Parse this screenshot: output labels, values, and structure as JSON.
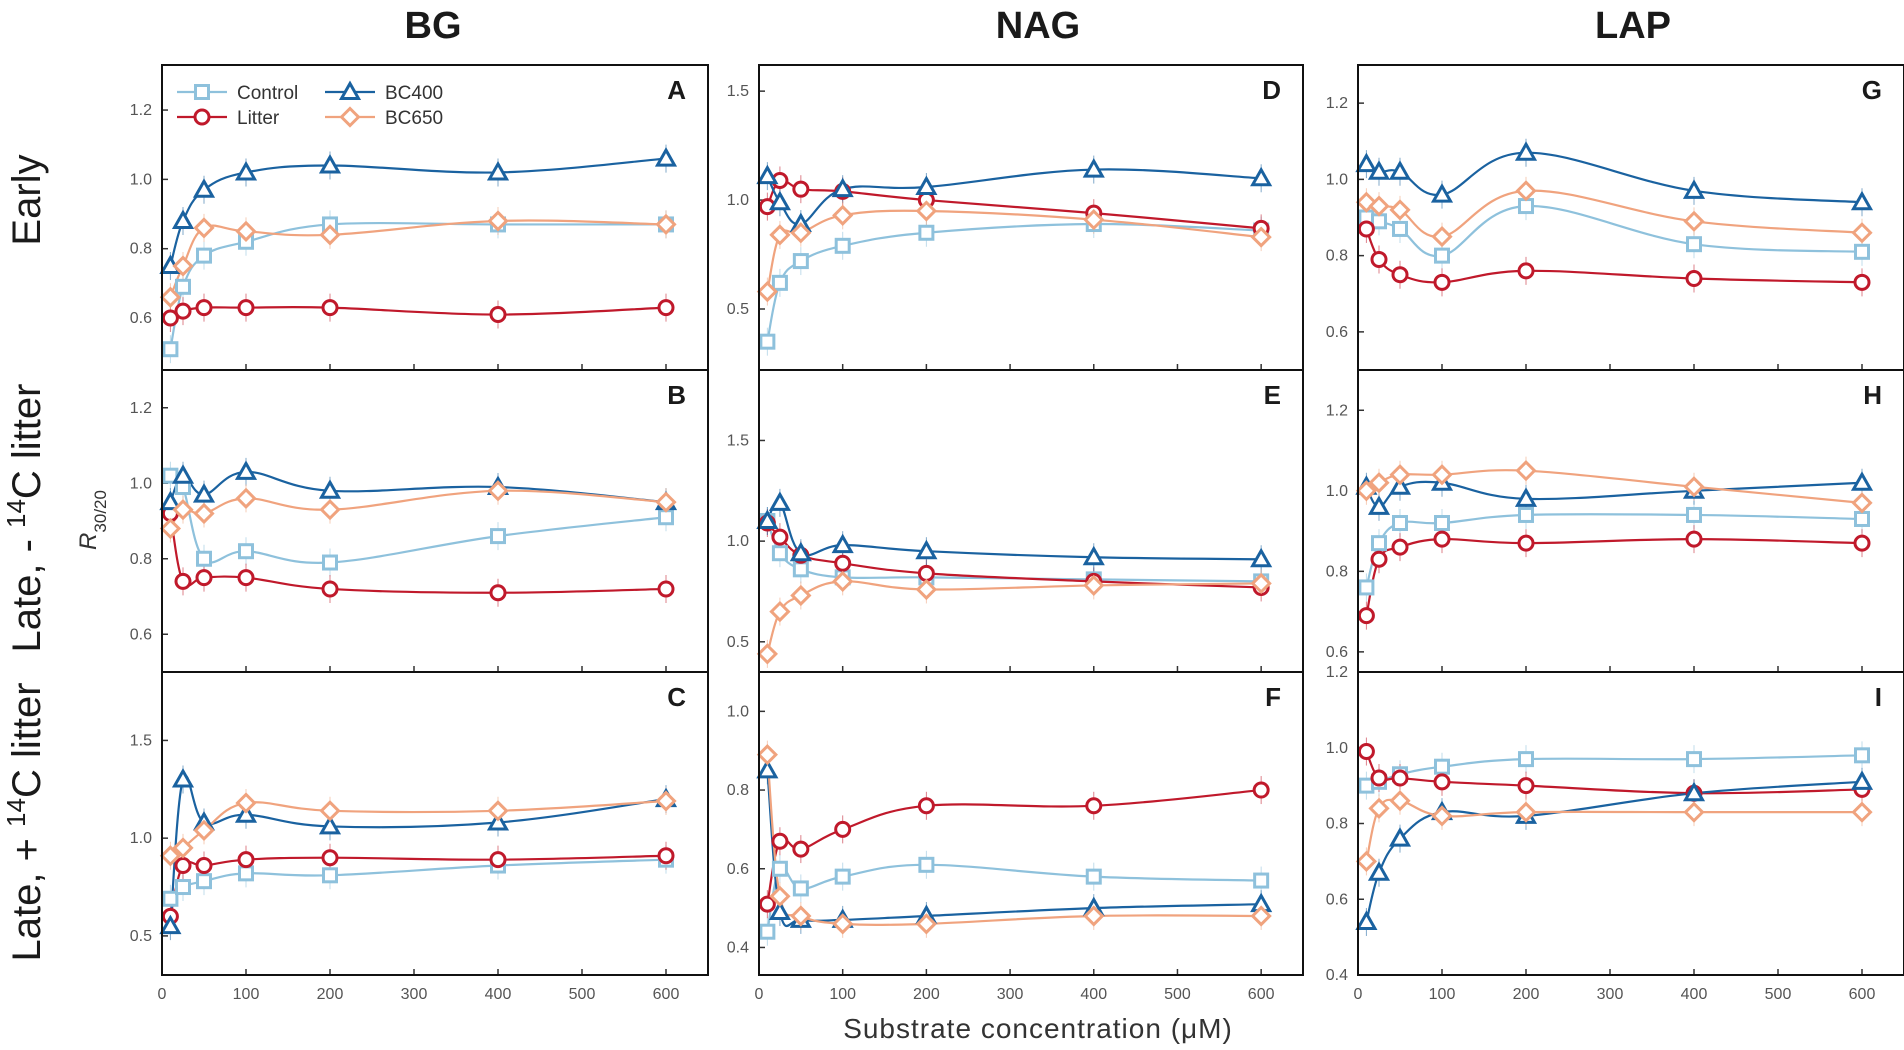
{
  "figure": {
    "columns": [
      "BG",
      "NAG",
      "LAP"
    ],
    "rows": [
      {
        "text": "Early",
        "sup": "",
        "suffix": ""
      },
      {
        "text": "Late, - ",
        "sup": "14",
        "suffix": "C litter"
      },
      {
        "text": "Late, + ",
        "sup": "14",
        "suffix": "C litter"
      }
    ],
    "xlabel": "Substrate concentration (μM)",
    "ylabel_main": "R",
    "ylabel_sub": "30/20",
    "colors": {
      "Control": "#8ec1dc",
      "Litter": "#c0192b",
      "BC400": "#1a62a0",
      "BC650": "#f0a37e"
    }
  },
  "chart_data": [
    {
      "panel": "A",
      "type": "line",
      "column": "BG",
      "row": "Early",
      "x": [
        10,
        25,
        50,
        100,
        200,
        400,
        600
      ],
      "xlim": [
        0,
        650
      ],
      "xticks": [
        0,
        100,
        200,
        300,
        400,
        500,
        600
      ],
      "ylim": [
        0.45,
        1.33
      ],
      "yticks": [
        0.6,
        0.8,
        1.0,
        1.2
      ],
      "legend": [
        "Control",
        "Litter",
        "BC400",
        "BC650"
      ],
      "series": [
        {
          "name": "Control",
          "marker": "square",
          "values": [
            0.51,
            0.69,
            0.78,
            0.82,
            0.87,
            0.87,
            0.87
          ]
        },
        {
          "name": "Litter",
          "marker": "circle",
          "values": [
            0.6,
            0.62,
            0.63,
            0.63,
            0.63,
            0.61,
            0.63
          ]
        },
        {
          "name": "BC400",
          "marker": "triangle",
          "values": [
            0.75,
            0.88,
            0.97,
            1.02,
            1.04,
            1.02,
            1.06
          ]
        },
        {
          "name": "BC650",
          "marker": "diamond",
          "values": [
            0.66,
            0.75,
            0.86,
            0.85,
            0.84,
            0.88,
            0.87
          ]
        }
      ]
    },
    {
      "panel": "B",
      "type": "line",
      "column": "BG",
      "row": "Late, -14C litter",
      "x": [
        10,
        25,
        50,
        100,
        200,
        400,
        600
      ],
      "xlim": [
        0,
        650
      ],
      "xticks": [
        0,
        100,
        200,
        300,
        400,
        500,
        600
      ],
      "ylim": [
        0.5,
        1.3
      ],
      "yticks": [
        0.6,
        0.8,
        1.0,
        1.2
      ],
      "series": [
        {
          "name": "Control",
          "marker": "square",
          "values": [
            1.02,
            0.99,
            0.8,
            0.82,
            0.79,
            0.86,
            0.91
          ]
        },
        {
          "name": "Litter",
          "marker": "circle",
          "values": [
            0.92,
            0.74,
            0.75,
            0.75,
            0.72,
            0.71,
            0.72
          ]
        },
        {
          "name": "BC400",
          "marker": "triangle",
          "values": [
            0.95,
            1.02,
            0.97,
            1.03,
            0.98,
            0.99,
            0.95
          ]
        },
        {
          "name": "BC650",
          "marker": "diamond",
          "values": [
            0.88,
            0.93,
            0.92,
            0.96,
            0.93,
            0.98,
            0.95
          ]
        }
      ]
    },
    {
      "panel": "C",
      "type": "line",
      "column": "BG",
      "row": "Late, +14C litter",
      "x": [
        10,
        25,
        50,
        100,
        200,
        400,
        600
      ],
      "xlim": [
        0,
        650
      ],
      "xticks": [
        0,
        100,
        200,
        300,
        400,
        500,
        600
      ],
      "ylim": [
        0.3,
        1.85
      ],
      "yticks": [
        0.5,
        1.0,
        1.5
      ],
      "series": [
        {
          "name": "Control",
          "marker": "square",
          "values": [
            0.69,
            0.75,
            0.78,
            0.82,
            0.81,
            0.86,
            0.89
          ]
        },
        {
          "name": "Litter",
          "marker": "circle",
          "values": [
            0.6,
            0.86,
            0.86,
            0.89,
            0.9,
            0.89,
            0.91
          ]
        },
        {
          "name": "BC400",
          "marker": "triangle",
          "values": [
            0.55,
            1.3,
            1.08,
            1.12,
            1.06,
            1.08,
            1.2
          ]
        },
        {
          "name": "BC650",
          "marker": "diamond",
          "values": [
            0.91,
            0.95,
            1.04,
            1.18,
            1.14,
            1.14,
            1.19
          ]
        }
      ]
    },
    {
      "panel": "D",
      "type": "line",
      "column": "NAG",
      "row": "Early",
      "x": [
        10,
        25,
        50,
        100,
        200,
        400,
        600
      ],
      "xlim": [
        0,
        650
      ],
      "xticks": [
        0,
        100,
        200,
        300,
        400,
        500,
        600
      ],
      "ylim": [
        0.22,
        1.62
      ],
      "yticks": [
        0.5,
        1.0,
        1.5
      ],
      "series": [
        {
          "name": "Control",
          "marker": "square",
          "values": [
            0.35,
            0.62,
            0.72,
            0.79,
            0.85,
            0.89,
            0.86
          ]
        },
        {
          "name": "Litter",
          "marker": "circle",
          "values": [
            0.97,
            1.09,
            1.05,
            1.04,
            1.0,
            0.94,
            0.87
          ]
        },
        {
          "name": "BC400",
          "marker": "triangle",
          "values": [
            1.11,
            0.99,
            0.89,
            1.05,
            1.06,
            1.14,
            1.1
          ]
        },
        {
          "name": "BC650",
          "marker": "diamond",
          "values": [
            0.58,
            0.84,
            0.85,
            0.93,
            0.95,
            0.91,
            0.83
          ]
        }
      ]
    },
    {
      "panel": "E",
      "type": "line",
      "column": "NAG",
      "row": "Late, -14C litter",
      "x": [
        10,
        25,
        50,
        100,
        200,
        400,
        600
      ],
      "xlim": [
        0,
        650
      ],
      "xticks": [
        0,
        100,
        200,
        300,
        400,
        500,
        600
      ],
      "ylim": [
        0.35,
        1.85
      ],
      "yticks": [
        0.5,
        1.0,
        1.5
      ],
      "series": [
        {
          "name": "Control",
          "marker": "square",
          "values": [
            1.1,
            0.94,
            0.86,
            0.82,
            0.82,
            0.81,
            0.8
          ]
        },
        {
          "name": "Litter",
          "marker": "circle",
          "values": [
            1.09,
            1.02,
            0.93,
            0.89,
            0.84,
            0.8,
            0.77
          ]
        },
        {
          "name": "BC400",
          "marker": "triangle",
          "values": [
            1.1,
            1.19,
            0.94,
            0.98,
            0.95,
            0.92,
            0.91
          ]
        },
        {
          "name": "BC650",
          "marker": "diamond",
          "values": [
            0.44,
            0.65,
            0.73,
            0.8,
            0.76,
            0.78,
            0.79
          ]
        }
      ]
    },
    {
      "panel": "F",
      "type": "line",
      "column": "NAG",
      "row": "Late, +14C litter",
      "x": [
        10,
        25,
        50,
        100,
        200,
        400,
        600
      ],
      "xlim": [
        0,
        650
      ],
      "xticks": [
        0,
        100,
        200,
        300,
        400,
        500,
        600
      ],
      "ylim": [
        0.33,
        1.1
      ],
      "yticks": [
        0.4,
        0.6,
        0.8,
        1.0
      ],
      "series": [
        {
          "name": "Control",
          "marker": "square",
          "values": [
            0.44,
            0.6,
            0.55,
            0.58,
            0.61,
            0.58,
            0.57
          ]
        },
        {
          "name": "Litter",
          "marker": "circle",
          "values": [
            0.51,
            0.67,
            0.65,
            0.7,
            0.76,
            0.76,
            0.8
          ]
        },
        {
          "name": "BC400",
          "marker": "triangle",
          "values": [
            0.85,
            0.49,
            0.47,
            0.47,
            0.48,
            0.5,
            0.51
          ]
        },
        {
          "name": "BC650",
          "marker": "diamond",
          "values": [
            0.89,
            0.53,
            0.48,
            0.46,
            0.46,
            0.48,
            0.48
          ]
        }
      ]
    },
    {
      "panel": "G",
      "type": "line",
      "column": "LAP",
      "row": "Early",
      "x": [
        10,
        25,
        50,
        100,
        200,
        400,
        600
      ],
      "xlim": [
        0,
        650
      ],
      "xticks": [
        0,
        100,
        200,
        300,
        400,
        500,
        600
      ],
      "ylim": [
        0.5,
        1.3
      ],
      "yticks": [
        0.6,
        0.8,
        1.0,
        1.2
      ],
      "series": [
        {
          "name": "Control",
          "marker": "square",
          "values": [
            0.9,
            0.89,
            0.87,
            0.8,
            0.93,
            0.83,
            0.81
          ]
        },
        {
          "name": "Litter",
          "marker": "circle",
          "values": [
            0.87,
            0.79,
            0.75,
            0.73,
            0.76,
            0.74,
            0.73
          ]
        },
        {
          "name": "BC400",
          "marker": "triangle",
          "values": [
            1.04,
            1.02,
            1.02,
            0.96,
            1.07,
            0.97,
            0.94
          ]
        },
        {
          "name": "BC650",
          "marker": "diamond",
          "values": [
            0.94,
            0.93,
            0.92,
            0.85,
            0.97,
            0.89,
            0.86
          ]
        }
      ]
    },
    {
      "panel": "H",
      "type": "line",
      "column": "LAP",
      "row": "Late, -14C litter",
      "x": [
        10,
        25,
        50,
        100,
        200,
        400,
        600
      ],
      "xlim": [
        0,
        650
      ],
      "xticks": [
        0,
        100,
        200,
        300,
        400,
        500,
        600
      ],
      "ylim": [
        0.55,
        1.3
      ],
      "yticks": [
        0.6,
        0.8,
        1.0,
        1.2
      ],
      "series": [
        {
          "name": "Control",
          "marker": "square",
          "values": [
            0.76,
            0.87,
            0.92,
            0.92,
            0.94,
            0.94,
            0.93
          ]
        },
        {
          "name": "Litter",
          "marker": "circle",
          "values": [
            0.69,
            0.83,
            0.86,
            0.88,
            0.87,
            0.88,
            0.87
          ]
        },
        {
          "name": "BC400",
          "marker": "triangle",
          "values": [
            1.01,
            0.96,
            1.01,
            1.02,
            0.98,
            1.0,
            1.02
          ]
        },
        {
          "name": "BC650",
          "marker": "diamond",
          "values": [
            1.0,
            1.02,
            1.04,
            1.04,
            1.05,
            1.01,
            0.97
          ]
        }
      ]
    },
    {
      "panel": "I",
      "type": "line",
      "column": "LAP",
      "row": "Late, +14C litter",
      "x": [
        10,
        25,
        50,
        100,
        200,
        400,
        600
      ],
      "xlim": [
        0,
        650
      ],
      "xticks": [
        0,
        100,
        200,
        300,
        400,
        500,
        600
      ],
      "ylim": [
        0.4,
        1.2
      ],
      "yticks": [
        0.4,
        0.6,
        0.8,
        1.0,
        1.2
      ],
      "series": [
        {
          "name": "Control",
          "marker": "square",
          "values": [
            0.9,
            0.91,
            0.93,
            0.95,
            0.97,
            0.97,
            0.98
          ]
        },
        {
          "name": "Litter",
          "marker": "circle",
          "values": [
            0.99,
            0.92,
            0.92,
            0.91,
            0.9,
            0.88,
            0.89
          ]
        },
        {
          "name": "BC400",
          "marker": "triangle",
          "values": [
            0.54,
            0.67,
            0.76,
            0.83,
            0.82,
            0.88,
            0.91
          ]
        },
        {
          "name": "BC650",
          "marker": "diamond",
          "values": [
            0.7,
            0.84,
            0.86,
            0.82,
            0.83,
            0.83,
            0.83
          ]
        }
      ]
    }
  ]
}
